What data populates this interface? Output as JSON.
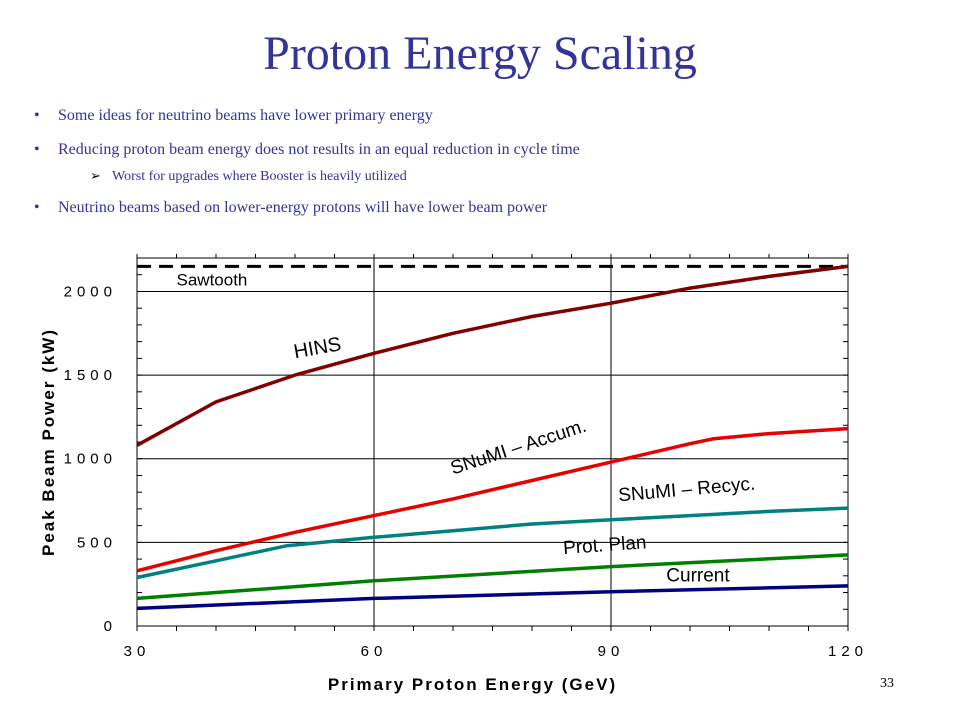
{
  "slide": {
    "title": "Proton Energy Scaling",
    "bullets": [
      "Some ideas for neutrino beams have lower primary energy",
      "Reducing proton beam energy does not results in an equal reduction in cycle time",
      "Neutrino beams based on lower-energy protons will have lower beam power"
    ],
    "sub_bullet": "Worst for upgrades where Booster is heavily utilized",
    "page_number": "33"
  },
  "chart_data": {
    "type": "line",
    "xlabel": "Primary Proton Energy (GeV)",
    "ylabel": "Peak Beam Power (kW)",
    "xlim": [
      30,
      120
    ],
    "ylim": [
      0,
      2200
    ],
    "x_ticks": [
      30,
      60,
      90,
      120
    ],
    "y_ticks": [
      0,
      500,
      1000,
      1500,
      2000
    ],
    "grid": true,
    "series": [
      {
        "name": "Sawtooth",
        "color": "#000000",
        "dashed": true,
        "points": [
          [
            30,
            2150
          ],
          [
            120,
            2150
          ]
        ]
      },
      {
        "name": "HINS",
        "color": "#800000",
        "points": [
          [
            30,
            1080
          ],
          [
            40,
            1340
          ],
          [
            50,
            1500
          ],
          [
            60,
            1630
          ],
          [
            70,
            1750
          ],
          [
            80,
            1850
          ],
          [
            90,
            1930
          ],
          [
            100,
            2020
          ],
          [
            110,
            2090
          ],
          [
            120,
            2150
          ]
        ]
      },
      {
        "name": "SNuMI – Accum.",
        "color": "#e60000",
        "points": [
          [
            30,
            330
          ],
          [
            40,
            450
          ],
          [
            50,
            560
          ],
          [
            60,
            660
          ],
          [
            70,
            760
          ],
          [
            80,
            870
          ],
          [
            90,
            980
          ],
          [
            100,
            1090
          ],
          [
            103,
            1120
          ],
          [
            110,
            1150
          ],
          [
            120,
            1180
          ]
        ]
      },
      {
        "name": "SNuMI – Recyc.",
        "color": "#008080",
        "points": [
          [
            30,
            290
          ],
          [
            40,
            390
          ],
          [
            49,
            480
          ],
          [
            60,
            530
          ],
          [
            70,
            570
          ],
          [
            80,
            610
          ],
          [
            90,
            635
          ],
          [
            100,
            660
          ],
          [
            110,
            685
          ],
          [
            120,
            705
          ]
        ]
      },
      {
        "name": "Prot. Plan",
        "color": "#008000",
        "points": [
          [
            30,
            165
          ],
          [
            60,
            270
          ],
          [
            90,
            355
          ],
          [
            120,
            425
          ]
        ]
      },
      {
        "name": "Current",
        "color": "#000080",
        "points": [
          [
            30,
            105
          ],
          [
            60,
            165
          ],
          [
            90,
            205
          ],
          [
            120,
            240
          ]
        ]
      }
    ]
  }
}
